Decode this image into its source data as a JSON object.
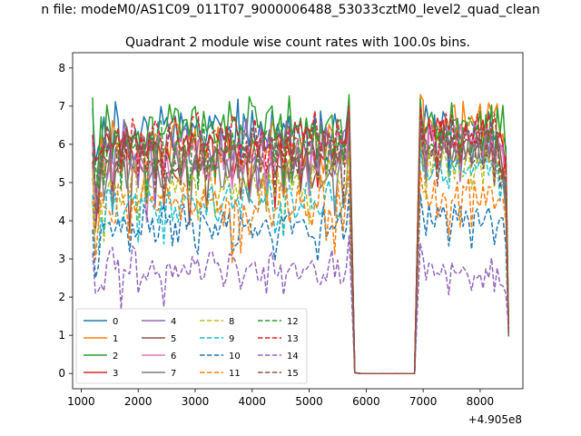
{
  "figure": {
    "suptitle": "n file: modeM0/AS1C09_011T07_9000006488_53033cztM0_level2_quad_clean",
    "offset_text": "+4.905e8"
  },
  "chart_data": {
    "type": "line",
    "title": "Quadrant 2 module wise count rates with 100.0s bins.",
    "xlabel": "",
    "ylabel": "",
    "xlim": [
      850,
      8750
    ],
    "ylim": [
      -0.4,
      8.4
    ],
    "x_ticks": [
      "1000",
      "2000",
      "3000",
      "4000",
      "5000",
      "6000",
      "7000",
      "8000"
    ],
    "y_ticks": [
      "0",
      "1",
      "2",
      "3",
      "4",
      "5",
      "6",
      "7",
      "8"
    ],
    "x_offset": 490500000,
    "grid": false,
    "legend_position": "lower-left",
    "legend_columns": 4,
    "x_segments": [
      [
        1200,
        1250,
        1300,
        1350,
        1400,
        1450,
        1500,
        1550,
        1600,
        1650,
        1700,
        1750,
        1800,
        1850,
        1900,
        1950,
        2000,
        2050,
        2100,
        2150,
        2200,
        2250,
        2300,
        2350,
        2400,
        2450,
        2500,
        2550,
        2600,
        2650,
        2700,
        2750,
        2800,
        2850,
        2900,
        2950,
        3000,
        3050,
        3100,
        3150,
        3200,
        3250,
        3300,
        3350,
        3400,
        3450,
        3500,
        3550,
        3600,
        3650,
        3700,
        3750,
        3800,
        3850,
        3900,
        3950,
        4000,
        4050,
        4100,
        4150,
        4200,
        4250,
        4300,
        4350,
        4400,
        4450,
        4500,
        4550,
        4600,
        4650,
        4700,
        4750,
        4800,
        4850,
        4900,
        4950,
        5000,
        5050,
        5100,
        5150,
        5200,
        5250,
        5300,
        5350,
        5400,
        5450,
        5500,
        5550,
        5600,
        5650,
        5700,
        5800
      ],
      [
        5900,
        6850
      ],
      [
        6950,
        7000,
        7050,
        7100,
        7150,
        7200,
        7250,
        7300,
        7350,
        7400,
        7450,
        7500,
        7550,
        7600,
        7650,
        7700,
        7750,
        7800,
        7850,
        7900,
        7950,
        8000,
        8050,
        8100,
        8150,
        8200,
        8250,
        8300,
        8350,
        8400,
        8450,
        8500
      ]
    ],
    "series": [
      {
        "name": "0",
        "color": "#1f77b4",
        "dash": "solid",
        "mean": 6.4,
        "amp": 0.55,
        "dip": 1.4,
        "post": 6.8
      },
      {
        "name": "1",
        "color": "#ff7f0e",
        "dash": "solid",
        "mean": 6.0,
        "amp": 0.55,
        "dip": 1.7,
        "post": 7.0
      },
      {
        "name": "2",
        "color": "#2ca02c",
        "dash": "solid",
        "mean": 6.5,
        "amp": 0.55,
        "dip": 1.2,
        "post": 6.9
      },
      {
        "name": "3",
        "color": "#d62728",
        "dash": "solid",
        "mean": 5.8,
        "amp": 0.5,
        "dip": 1.3,
        "post": 6.6
      },
      {
        "name": "4",
        "color": "#9467bd",
        "dash": "solid",
        "mean": 6.0,
        "amp": 0.5,
        "dip": 1.3,
        "post": 6.5
      },
      {
        "name": "5",
        "color": "#8c564b",
        "dash": "solid",
        "mean": 5.5,
        "amp": 0.45,
        "dip": 1.3,
        "post": 6.2
      },
      {
        "name": "6",
        "color": "#e377c2",
        "dash": "solid",
        "mean": 5.7,
        "amp": 0.45,
        "dip": 1.2,
        "post": 6.4
      },
      {
        "name": "7",
        "color": "#7f7f7f",
        "dash": "solid",
        "mean": 5.4,
        "amp": 0.45,
        "dip": 1.2,
        "post": 6.1
      },
      {
        "name": "8",
        "color": "#bcbd22",
        "dash": "dashed",
        "mean": 5.0,
        "amp": 0.45,
        "dip": 1.2,
        "post": 5.8
      },
      {
        "name": "9",
        "color": "#17becf",
        "dash": "dashed",
        "mean": 4.5,
        "amp": 0.35,
        "dip": 1.1,
        "post": 5.6
      },
      {
        "name": "10",
        "color": "#1f77b4",
        "dash": "dashed",
        "mean": 3.9,
        "amp": 0.35,
        "dip": 0.9,
        "post": 4.4
      },
      {
        "name": "11",
        "color": "#ff7f0e",
        "dash": "dashed",
        "mean": 4.5,
        "amp": 0.45,
        "dip": 1.2,
        "post": 5.0
      },
      {
        "name": "12",
        "color": "#2ca02c",
        "dash": "dashed",
        "mean": 6.1,
        "amp": 0.45,
        "dip": 1.2,
        "post": 6.6
      },
      {
        "name": "13",
        "color": "#d62728",
        "dash": "dashed",
        "mean": 6.2,
        "amp": 0.45,
        "dip": 1.2,
        "post": 6.7
      },
      {
        "name": "14",
        "color": "#9467bd",
        "dash": "dashed",
        "mean": 2.8,
        "amp": 0.3,
        "dip": 0.8,
        "post": 3.1
      },
      {
        "name": "15",
        "color": "#8c564b",
        "dash": "dashed",
        "mean": 5.9,
        "amp": 0.45,
        "dip": 1.2,
        "post": 6.3
      }
    ]
  }
}
